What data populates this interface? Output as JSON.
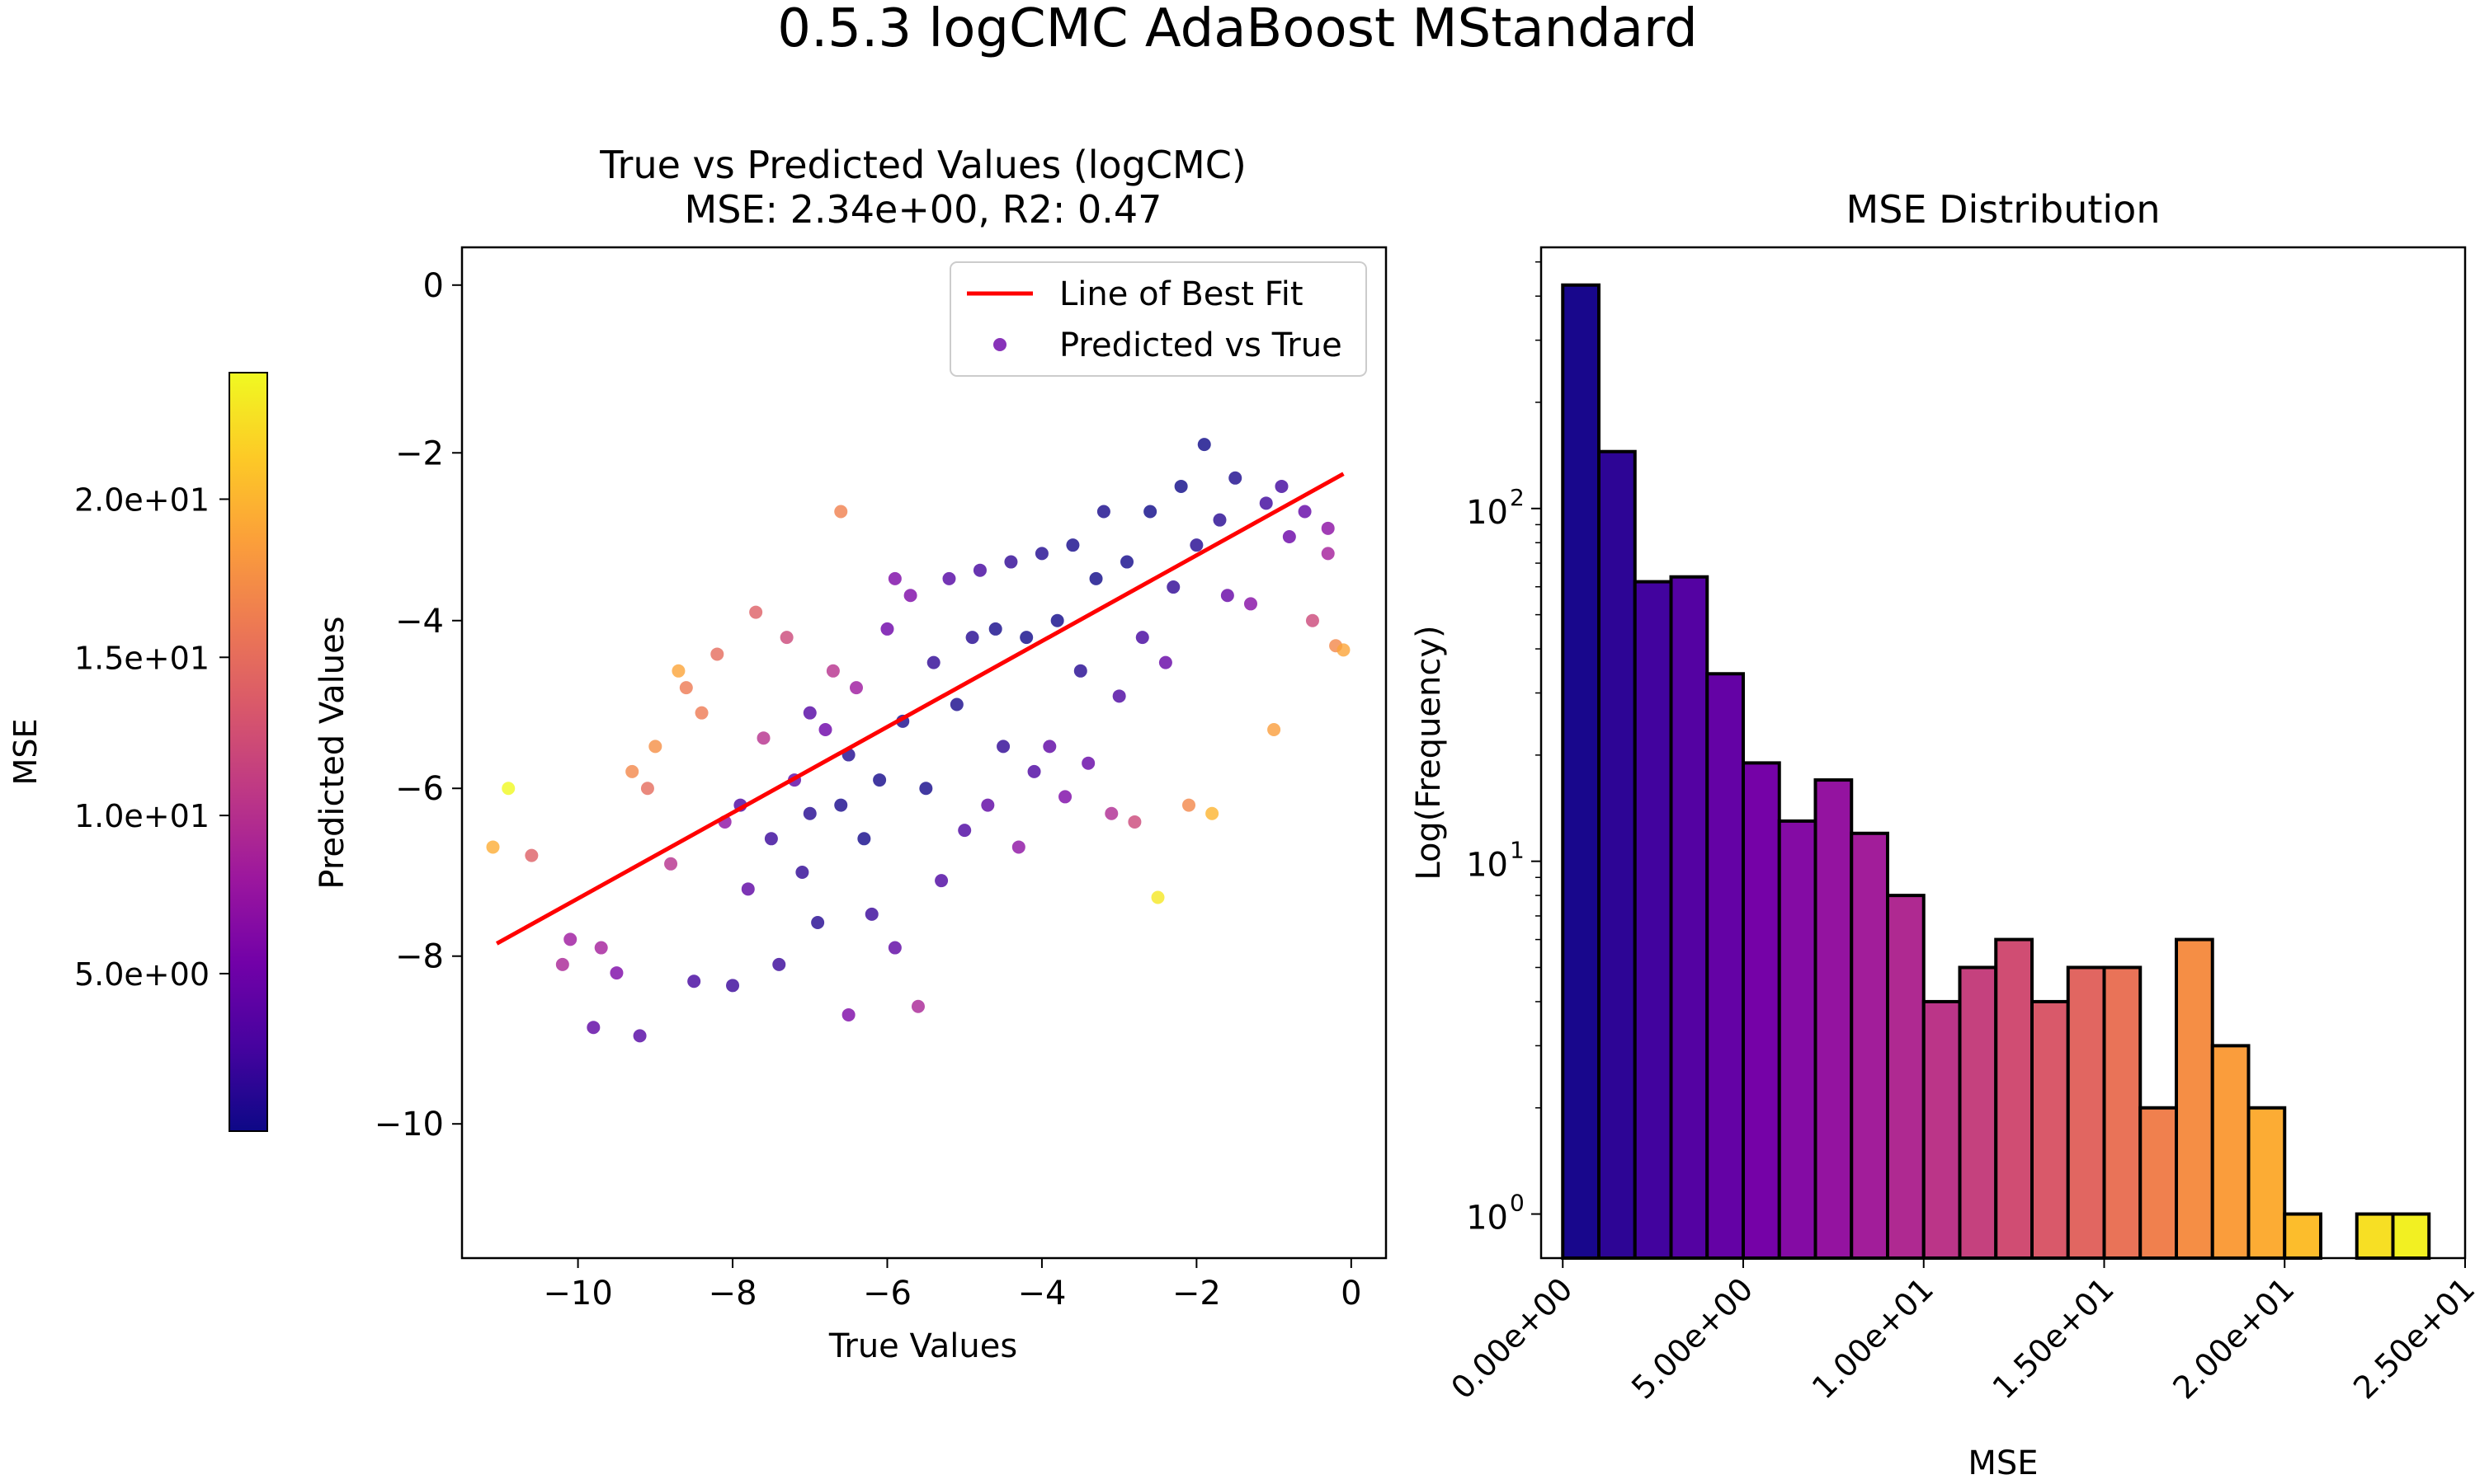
{
  "figure": {
    "suptitle": "0.5.3 logCMC AdaBoost MStandard"
  },
  "colorbar": {
    "label": "MSE",
    "range": [
      0.02,
      24.0
    ],
    "ticks": [
      5,
      10,
      15,
      20
    ],
    "tick_labels": [
      "5.0e+00",
      "1.0e+01",
      "1.5e+01",
      "2.0e+01"
    ],
    "colormap": [
      "#0d0887",
      "#46039f",
      "#7201a8",
      "#9c179e",
      "#bd3786",
      "#d8576b",
      "#ed7953",
      "#fb9f3a",
      "#fdca26",
      "#f0f921"
    ]
  },
  "chart_data": [
    {
      "type": "scatter",
      "title_line1": "True vs Predicted Values (logCMC)",
      "title_line2": "MSE: 2.34e+00, R2: 0.47",
      "xlabel": "True Values",
      "ylabel": "Predicted Values",
      "xlim": [
        -11.5,
        0.45
      ],
      "ylim": [
        -11.6,
        0.45
      ],
      "xticks": [
        -10,
        -8,
        -6,
        -4,
        -2,
        0
      ],
      "xtick_labels": [
        "−10",
        "−8",
        "−6",
        "−4",
        "−2",
        "0"
      ],
      "yticks": [
        0,
        -2,
        -4,
        -6,
        -8,
        -10
      ],
      "ytick_labels": [
        "0",
        "−2",
        "−4",
        "−6",
        "−8",
        "−10"
      ],
      "legend": {
        "position": "top-right",
        "entries": [
          "Line of Best Fit",
          "Predicted vs True"
        ]
      },
      "best_fit": {
        "x": [
          -11.05,
          -0.1
        ],
        "y": [
          -7.85,
          -2.25
        ],
        "color": "#ff0000"
      },
      "point_color_scale": "MSE",
      "marker_alpha": 0.8,
      "points": [
        {
          "x": -11.1,
          "y": -6.7,
          "mse": 19.5
        },
        {
          "x": -10.9,
          "y": -6.0,
          "mse": 24.0
        },
        {
          "x": -10.6,
          "y": -6.8,
          "mse": 14.0
        },
        {
          "x": -10.2,
          "y": -8.1,
          "mse": 9.0
        },
        {
          "x": -10.1,
          "y": -7.8,
          "mse": 8.0
        },
        {
          "x": -9.8,
          "y": -8.85,
          "mse": 4.0
        },
        {
          "x": -9.7,
          "y": -7.9,
          "mse": 8.5
        },
        {
          "x": -9.5,
          "y": -8.2,
          "mse": 6.0
        },
        {
          "x": -9.3,
          "y": -5.8,
          "mse": 17.0
        },
        {
          "x": -9.2,
          "y": -8.95,
          "mse": 3.5
        },
        {
          "x": -9.1,
          "y": -6.0,
          "mse": 15.0
        },
        {
          "x": -9.0,
          "y": -5.5,
          "mse": 17.5
        },
        {
          "x": -8.8,
          "y": -6.9,
          "mse": 10.0
        },
        {
          "x": -8.7,
          "y": -4.6,
          "mse": 19.0
        },
        {
          "x": -8.6,
          "y": -4.8,
          "mse": 16.0
        },
        {
          "x": -8.5,
          "y": -8.3,
          "mse": 2.5
        },
        {
          "x": -8.4,
          "y": -5.1,
          "mse": 16.0
        },
        {
          "x": -8.2,
          "y": -4.4,
          "mse": 15.0
        },
        {
          "x": -8.1,
          "y": -6.4,
          "mse": 7.0
        },
        {
          "x": -8.0,
          "y": -8.35,
          "mse": 2.0
        },
        {
          "x": -7.9,
          "y": -6.2,
          "mse": 3.0
        },
        {
          "x": -7.8,
          "y": -7.2,
          "mse": 4.0
        },
        {
          "x": -7.7,
          "y": -3.9,
          "mse": 14.0
        },
        {
          "x": -7.6,
          "y": -5.4,
          "mse": 10.0
        },
        {
          "x": -7.5,
          "y": -6.6,
          "mse": 2.0
        },
        {
          "x": -7.4,
          "y": -8.1,
          "mse": 2.0
        },
        {
          "x": -7.3,
          "y": -4.2,
          "mse": 12.0
        },
        {
          "x": -7.2,
          "y": -5.9,
          "mse": 4.0
        },
        {
          "x": -7.1,
          "y": -7.0,
          "mse": 1.5
        },
        {
          "x": -7.0,
          "y": -6.3,
          "mse": 1.0
        },
        {
          "x": -6.9,
          "y": -7.6,
          "mse": 1.0
        },
        {
          "x": -6.8,
          "y": -5.3,
          "mse": 5.0
        },
        {
          "x": -6.7,
          "y": -4.6,
          "mse": 10.0
        },
        {
          "x": -6.6,
          "y": -6.2,
          "mse": 0.5
        },
        {
          "x": -6.5,
          "y": -8.7,
          "mse": 6.0
        },
        {
          "x": -6.4,
          "y": -4.8,
          "mse": 8.0
        },
        {
          "x": -6.3,
          "y": -6.6,
          "mse": 0.2
        },
        {
          "x": -6.2,
          "y": -7.5,
          "mse": 2.0
        },
        {
          "x": -6.1,
          "y": -5.9,
          "mse": 0.3
        },
        {
          "x": -6.0,
          "y": -4.1,
          "mse": 5.0
        },
        {
          "x": -5.9,
          "y": -7.9,
          "mse": 4.0
        },
        {
          "x": -5.8,
          "y": -5.2,
          "mse": 0.5
        },
        {
          "x": -5.7,
          "y": -3.7,
          "mse": 6.0
        },
        {
          "x": -5.6,
          "y": -8.6,
          "mse": 9.0
        },
        {
          "x": -5.5,
          "y": -6.0,
          "mse": 0.3
        },
        {
          "x": -5.4,
          "y": -4.5,
          "mse": 1.5
        },
        {
          "x": -5.3,
          "y": -7.1,
          "mse": 3.0
        },
        {
          "x": -5.2,
          "y": -3.5,
          "mse": 3.5
        },
        {
          "x": -5.1,
          "y": -5.0,
          "mse": 0.5
        },
        {
          "x": -5.0,
          "y": -6.5,
          "mse": 3.0
        },
        {
          "x": -4.9,
          "y": -4.2,
          "mse": 1.0
        },
        {
          "x": -4.8,
          "y": -3.4,
          "mse": 2.5
        },
        {
          "x": -4.7,
          "y": -6.2,
          "mse": 4.0
        },
        {
          "x": -4.6,
          "y": -4.1,
          "mse": 0.3
        },
        {
          "x": -4.5,
          "y": -5.5,
          "mse": 1.5
        },
        {
          "x": -4.4,
          "y": -3.3,
          "mse": 1.5
        },
        {
          "x": -4.3,
          "y": -6.7,
          "mse": 7.0
        },
        {
          "x": -4.2,
          "y": -4.2,
          "mse": 0.1
        },
        {
          "x": -4.1,
          "y": -5.8,
          "mse": 3.0
        },
        {
          "x": -4.0,
          "y": -3.2,
          "mse": 0.8
        },
        {
          "x": -3.9,
          "y": -5.5,
          "mse": 4.0
        },
        {
          "x": -3.8,
          "y": -4.0,
          "mse": 0.1
        },
        {
          "x": -3.7,
          "y": -6.1,
          "mse": 6.0
        },
        {
          "x": -3.6,
          "y": -3.1,
          "mse": 0.3
        },
        {
          "x": -3.5,
          "y": -4.6,
          "mse": 1.0
        },
        {
          "x": -3.4,
          "y": -5.7,
          "mse": 4.5
        },
        {
          "x": -3.3,
          "y": -3.5,
          "mse": 0.05
        },
        {
          "x": -3.2,
          "y": -2.7,
          "mse": 0.4
        },
        {
          "x": -3.1,
          "y": -6.3,
          "mse": 9.5
        },
        {
          "x": -3.0,
          "y": -4.9,
          "mse": 3.0
        },
        {
          "x": -2.9,
          "y": -3.3,
          "mse": 0.2
        },
        {
          "x": -2.8,
          "y": -6.4,
          "mse": 12.0
        },
        {
          "x": -2.7,
          "y": -4.2,
          "mse": 2.5
        },
        {
          "x": -2.6,
          "y": -2.7,
          "mse": 0.02
        },
        {
          "x": -2.5,
          "y": -7.3,
          "mse": 23.0
        },
        {
          "x": -2.4,
          "y": -4.5,
          "mse": 4.5
        },
        {
          "x": -2.3,
          "y": -3.6,
          "mse": 1.5
        },
        {
          "x": -2.2,
          "y": -2.4,
          "mse": 0.04
        },
        {
          "x": -2.1,
          "y": -6.2,
          "mse": 17.0
        },
        {
          "x": -2.0,
          "y": -3.1,
          "mse": 1.0
        },
        {
          "x": -1.9,
          "y": -1.9,
          "mse": 0.01
        },
        {
          "x": -1.8,
          "y": -6.3,
          "mse": 20.0
        },
        {
          "x": -1.7,
          "y": -2.8,
          "mse": 1.1
        },
        {
          "x": -1.6,
          "y": -3.7,
          "mse": 4.5
        },
        {
          "x": -1.5,
          "y": -2.3,
          "mse": 0.6
        },
        {
          "x": -1.3,
          "y": -3.8,
          "mse": 6.5
        },
        {
          "x": -1.1,
          "y": -2.6,
          "mse": 2.2
        },
        {
          "x": -1.0,
          "y": -5.3,
          "mse": 18.5
        },
        {
          "x": -0.9,
          "y": -2.4,
          "mse": 2.3
        },
        {
          "x": -0.8,
          "y": -3.0,
          "mse": 4.8
        },
        {
          "x": -0.6,
          "y": -2.7,
          "mse": 4.4
        },
        {
          "x": -0.5,
          "y": -4.0,
          "mse": 12.0
        },
        {
          "x": -0.3,
          "y": -3.2,
          "mse": 8.5
        },
        {
          "x": -0.2,
          "y": -4.3,
          "mse": 17.0
        },
        {
          "x": -0.1,
          "y": -4.35,
          "mse": 19.0
        },
        {
          "x": -0.3,
          "y": -2.9,
          "mse": 6.8
        },
        {
          "x": -6.6,
          "y": -2.7,
          "mse": 16.5
        },
        {
          "x": -5.9,
          "y": -3.5,
          "mse": 6.0
        },
        {
          "x": -7.0,
          "y": -5.1,
          "mse": 3.5
        },
        {
          "x": -6.5,
          "y": -5.6,
          "mse": 0.8
        }
      ]
    },
    {
      "type": "bar",
      "title": "MSE Distribution",
      "xlabel": "MSE",
      "ylabel": "Log(Frequency)",
      "yscale": "log",
      "xlim": [
        -0.6,
        25.0
      ],
      "ylim": [
        0.75,
        550
      ],
      "xticks": [
        0,
        5,
        10,
        15,
        20,
        25
      ],
      "xtick_labels": [
        "0.00e+00",
        "5.00e+00",
        "1.00e+01",
        "1.50e+01",
        "2.00e+01",
        "2.50e+01"
      ],
      "yticks": [
        1,
        10,
        100
      ],
      "ytick_labels": [
        "10",
        "10",
        "10"
      ],
      "ytick_exponents": [
        "0",
        "1",
        "2"
      ],
      "bin_width": 1.0,
      "bins": [
        {
          "x0": 0.0,
          "count": 430
        },
        {
          "x0": 1.0,
          "count": 145
        },
        {
          "x0": 2.0,
          "count": 62
        },
        {
          "x0": 3.0,
          "count": 64
        },
        {
          "x0": 4.0,
          "count": 34
        },
        {
          "x0": 5.0,
          "count": 19
        },
        {
          "x0": 6.0,
          "count": 13
        },
        {
          "x0": 7.0,
          "count": 17
        },
        {
          "x0": 8.0,
          "count": 12
        },
        {
          "x0": 9.0,
          "count": 8
        },
        {
          "x0": 10.0,
          "count": 4
        },
        {
          "x0": 11.0,
          "count": 5
        },
        {
          "x0": 12.0,
          "count": 6
        },
        {
          "x0": 13.0,
          "count": 4
        },
        {
          "x0": 14.0,
          "count": 5
        },
        {
          "x0": 15.0,
          "count": 5
        },
        {
          "x0": 16.0,
          "count": 2
        },
        {
          "x0": 17.0,
          "count": 6
        },
        {
          "x0": 18.0,
          "count": 3
        },
        {
          "x0": 19.0,
          "count": 2
        },
        {
          "x0": 20.0,
          "count": 1
        },
        {
          "x0": 21.0,
          "count": 0
        },
        {
          "x0": 22.0,
          "count": 1
        },
        {
          "x0": 23.0,
          "count": 1
        }
      ]
    }
  ]
}
